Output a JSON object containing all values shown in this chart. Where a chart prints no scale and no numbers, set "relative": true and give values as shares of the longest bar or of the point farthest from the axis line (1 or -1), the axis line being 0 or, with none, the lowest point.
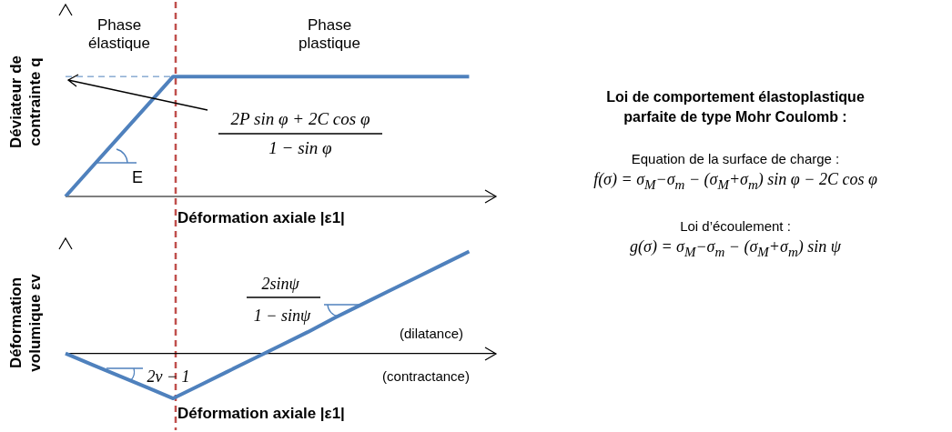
{
  "chart_data": [
    {
      "type": "line",
      "relative": true,
      "ylabel": "Déviateur de contrainte q",
      "xlabel": "Déformation axiale |ε1|",
      "grid": false,
      "legend": false,
      "categories": [
        null,
        null,
        null,
        null,
        null,
        null,
        null,
        null,
        null,
        null,
        null,
        null,
        null,
        null,
        null,
        null
      ],
      "series": [
        {
          "color": "#4f81bd",
          "values": [
            0,
            0.25,
            0.5,
            0.75,
            1,
            1,
            1,
            1,
            1,
            1,
            1,
            1,
            1,
            1,
            1,
            1
          ]
        }
      ],
      "ref_lines": [
        {
          "axis": "y",
          "value": 1,
          "color": "#4f81bd",
          "line_style": "dashed"
        }
      ],
      "annotations": [
        "Phase élastique",
        "Phase plastique",
        "E",
        "2P sin φ + 2C cos φ",
        "1 − sin φ"
      ]
    },
    {
      "type": "line",
      "relative": true,
      "ylabel": "Déformation volumique  εv",
      "xlabel": "Déformation axiale |ε1|",
      "grid": false,
      "legend": false,
      "categories": [
        null,
        null,
        null,
        null,
        null,
        null,
        null,
        null,
        null,
        null,
        null,
        null,
        null,
        null,
        null,
        null
      ],
      "series": [
        {
          "color": "#4f81bd",
          "values": [
            0,
            -0.11,
            -0.22,
            -0.33,
            -0.44,
            -0.31,
            -0.18,
            -0.05,
            0.08,
            0.21,
            0.35,
            0.48,
            0.61,
            0.74,
            0.87,
            1
          ]
        }
      ],
      "annotations": [
        "2sinψ",
        "1 − sinψ",
        "2ν − 1",
        "(dilatance)",
        "(contractance)"
      ]
    },
    {
      "type": "other",
      "title": "Loi de comportement élastoplastique parfaite de type Mohr Coulomb :",
      "annotations": [
        "Equation de la surface de charge :",
        "f(σ) = σ$_{M}$−σ$_{m}$ − (σ$_{M}$+σ$_{m}$) sin φ − 2C cos φ",
        "Loi d’écoulement :",
        "g(σ) = σ$_{M}$−σ$_{m}$ − (σ$_{M}$+σ$_{m}$) sin ψ"
      ]
    }
  ]
}
